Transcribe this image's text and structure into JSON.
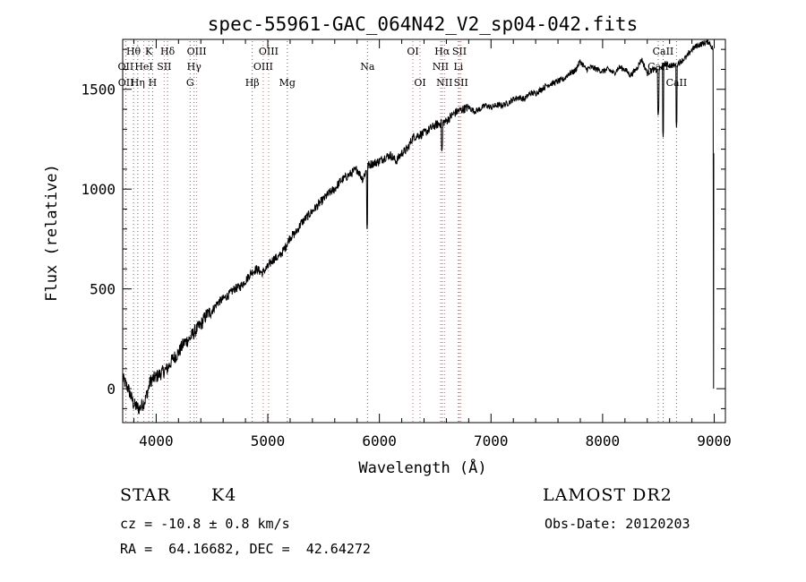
{
  "chart_data": {
    "type": "line",
    "title": "spec-55961-GAC_064N42_V2_sp04-042.fits",
    "xlabel": "Wavelength (Å)",
    "ylabel": "Flux (relative)",
    "xlim": [
      3700,
      9100
    ],
    "ylim": [
      -170,
      1750
    ],
    "x_ticks": [
      4000,
      5000,
      6000,
      7000,
      8000,
      9000
    ],
    "y_ticks": [
      0,
      500,
      1000,
      1500
    ],
    "grid": false,
    "series": [
      {
        "color": "#000000",
        "x": [
          3700,
          3750,
          3800,
          3850,
          3900,
          3950,
          4000,
          4050,
          4100,
          4150,
          4200,
          4250,
          4300,
          4350,
          4400,
          4450,
          4500,
          4550,
          4600,
          4650,
          4700,
          4750,
          4800,
          4850,
          4900,
          4950,
          5000,
          5050,
          5100,
          5150,
          5200,
          5250,
          5300,
          5350,
          5400,
          5450,
          5500,
          5550,
          5600,
          5650,
          5700,
          5750,
          5800,
          5850,
          5900,
          5950,
          6000,
          6050,
          6100,
          6150,
          6200,
          6250,
          6300,
          6350,
          6400,
          6450,
          6500,
          6550,
          6600,
          6650,
          6700,
          6750,
          6800,
          6850,
          6900,
          6950,
          7000,
          7050,
          7100,
          7150,
          7200,
          7250,
          7300,
          7350,
          7400,
          7450,
          7500,
          7550,
          7600,
          7650,
          7700,
          7750,
          7800,
          7850,
          7900,
          7950,
          8000,
          8050,
          8100,
          8150,
          8200,
          8250,
          8300,
          8350,
          8400,
          8450,
          8500,
          8550,
          8600,
          8650,
          8700,
          8750,
          8800,
          8850,
          8900,
          8950,
          8990
        ],
        "y": [
          50,
          0,
          -80,
          -100,
          -60,
          40,
          60,
          80,
          100,
          150,
          180,
          230,
          250,
          290,
          320,
          370,
          390,
          430,
          450,
          470,
          500,
          510,
          540,
          580,
          600,
          580,
          610,
          650,
          660,
          700,
          760,
          780,
          830,
          860,
          890,
          920,
          950,
          980,
          1000,
          1040,
          1060,
          1080,
          1100,
          1050,
          1120,
          1130,
          1140,
          1160,
          1170,
          1140,
          1180,
          1200,
          1260,
          1270,
          1280,
          1300,
          1320,
          1330,
          1340,
          1370,
          1390,
          1400,
          1410,
          1390,
          1400,
          1420,
          1410,
          1420,
          1420,
          1430,
          1450,
          1460,
          1450,
          1480,
          1480,
          1500,
          1520,
          1530,
          1540,
          1550,
          1580,
          1590,
          1640,
          1600,
          1610,
          1600,
          1590,
          1600,
          1580,
          1610,
          1600,
          1570,
          1600,
          1650,
          1580,
          1600,
          1590,
          1630,
          1620,
          1620,
          1640,
          1660,
          1700,
          1720,
          1730,
          1740,
          1700
        ]
      }
    ],
    "dips": [
      {
        "x": 5890,
        "y": 800
      },
      {
        "x": 6560,
        "y": 1180
      },
      {
        "x": 8498,
        "y": 1360
      },
      {
        "x": 8542,
        "y": 1260
      },
      {
        "x": 8662,
        "y": 1310
      }
    ],
    "spectral_lines": [
      {
        "label": "Hθ",
        "x": 3797,
        "row": 0,
        "color": "#666666"
      },
      {
        "label": "K",
        "x": 3934,
        "row": 0,
        "color": "#666666"
      },
      {
        "label": "Hδ",
        "x": 4102,
        "row": 0,
        "color": "#666666"
      },
      {
        "label": "OIII",
        "x": 4363,
        "row": 0,
        "color": "#cc6666"
      },
      {
        "label": "OIII",
        "x": 5007,
        "row": 0,
        "color": "#cc6666"
      },
      {
        "label": "OI",
        "x": 6300,
        "row": 0,
        "color": "#cc6666"
      },
      {
        "label": "Hα",
        "x": 6563,
        "row": 0,
        "color": "#666666"
      },
      {
        "label": "SII",
        "x": 6717,
        "row": 0,
        "color": "#cc6666"
      },
      {
        "label": "CaII",
        "x": 8542,
        "row": 0,
        "color": "#666666"
      },
      {
        "label": "OII",
        "x": 3727,
        "row": 1,
        "color": "#cc6666"
      },
      {
        "label": "HeI",
        "x": 3889,
        "row": 1,
        "color": "#cc6666"
      },
      {
        "label": "SII",
        "x": 4072,
        "row": 1,
        "color": "#cc6666"
      },
      {
        "label": "Hγ",
        "x": 4340,
        "row": 1,
        "color": "#666666"
      },
      {
        "label": "OIII",
        "x": 4959,
        "row": 1,
        "color": "#cc6666"
      },
      {
        "label": "Na",
        "x": 5893,
        "row": 1,
        "color": "#666666"
      },
      {
        "label": "NII",
        "x": 6548,
        "row": 1,
        "color": "#cc6666"
      },
      {
        "label": "Li",
        "x": 6708,
        "row": 1,
        "color": "#666666"
      },
      {
        "label": "CaII",
        "x": 8498,
        "row": 1,
        "color": "#666666"
      },
      {
        "label": "OII",
        "x": 3729,
        "row": 2,
        "color": "#cc6666"
      },
      {
        "label": "Hη",
        "x": 3835,
        "row": 2,
        "color": "#666666"
      },
      {
        "label": "H",
        "x": 3968,
        "row": 2,
        "color": "#666666"
      },
      {
        "label": "G",
        "x": 4304,
        "row": 2,
        "color": "#666666"
      },
      {
        "label": "Hβ",
        "x": 4861,
        "row": 2,
        "color": "#666666"
      },
      {
        "label": "Mg",
        "x": 5175,
        "row": 2,
        "color": "#666666"
      },
      {
        "label": "OI",
        "x": 6364,
        "row": 2,
        "color": "#cc6666"
      },
      {
        "label": "NII",
        "x": 6583,
        "row": 2,
        "color": "#cc6666"
      },
      {
        "label": "SII",
        "x": 6731,
        "row": 2,
        "color": "#cc6666"
      },
      {
        "label": "CaII",
        "x": 8662,
        "row": 2,
        "color": "#666666"
      }
    ]
  },
  "footer": {
    "object_class": "STAR",
    "subclass": "K4",
    "survey": "LAMOST DR2",
    "cz": "cz = -10.8 ± 0.8 km/s",
    "obs_date": "Obs-Date: 20120203",
    "coords": "RA =  64.16682, DEC =  42.64272"
  }
}
